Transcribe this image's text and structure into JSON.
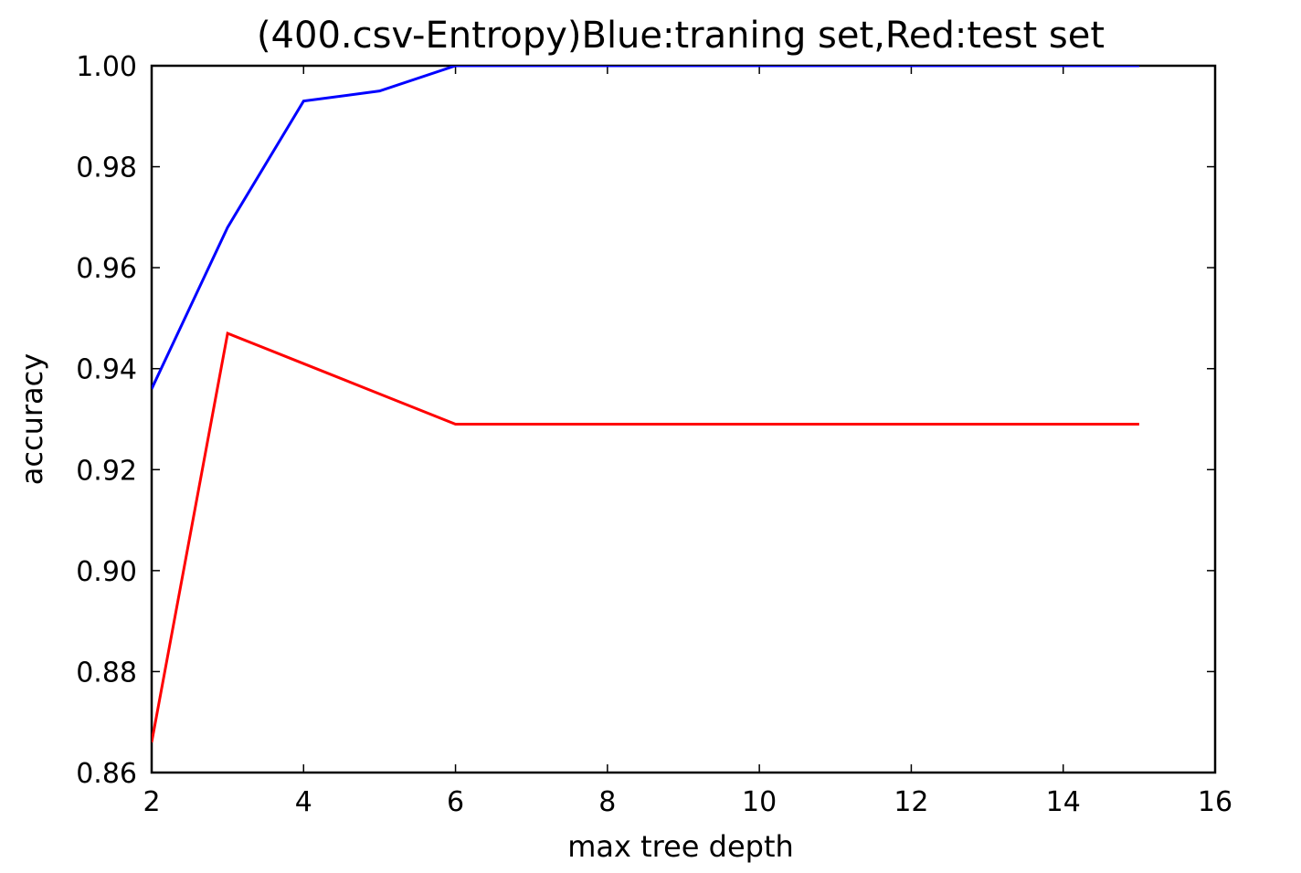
{
  "chart_data": {
    "type": "line",
    "title": "(400.csv-Entropy)Blue:traning set,Red:test set",
    "xlabel": "max tree depth",
    "ylabel": "accuracy",
    "xlim": [
      2,
      16
    ],
    "ylim": [
      0.86,
      1.0
    ],
    "xticks": [
      2,
      4,
      6,
      8,
      10,
      12,
      14,
      16
    ],
    "yticks": [
      0.86,
      0.88,
      0.9,
      0.92,
      0.94,
      0.96,
      0.98,
      1.0
    ],
    "ytick_format_decimals": 2,
    "grid": false,
    "legend": "none",
    "series": [
      {
        "color": "#0000ff",
        "points": [
          {
            "x": 2,
            "y": 0.936
          },
          {
            "x": 3,
            "y": 0.968
          },
          {
            "x": 4,
            "y": 0.993
          },
          {
            "x": 5,
            "y": 0.995
          },
          {
            "x": 6,
            "y": 1.0
          },
          {
            "x": 7,
            "y": 1.0
          },
          {
            "x": 8,
            "y": 1.0
          },
          {
            "x": 9,
            "y": 1.0
          },
          {
            "x": 10,
            "y": 1.0
          },
          {
            "x": 11,
            "y": 1.0
          },
          {
            "x": 12,
            "y": 1.0
          },
          {
            "x": 13,
            "y": 1.0
          },
          {
            "x": 14,
            "y": 1.0
          },
          {
            "x": 15,
            "y": 1.0
          }
        ]
      },
      {
        "color": "#ff0000",
        "points": [
          {
            "x": 2,
            "y": 0.866
          },
          {
            "x": 3,
            "y": 0.947
          },
          {
            "x": 4,
            "y": 0.941
          },
          {
            "x": 5,
            "y": 0.935
          },
          {
            "x": 6,
            "y": 0.929
          },
          {
            "x": 7,
            "y": 0.929
          },
          {
            "x": 8,
            "y": 0.929
          },
          {
            "x": 9,
            "y": 0.929
          },
          {
            "x": 10,
            "y": 0.929
          },
          {
            "x": 11,
            "y": 0.929
          },
          {
            "x": 12,
            "y": 0.929
          },
          {
            "x": 13,
            "y": 0.929
          },
          {
            "x": 14,
            "y": 0.929
          },
          {
            "x": 15,
            "y": 0.929
          }
        ]
      }
    ]
  }
}
